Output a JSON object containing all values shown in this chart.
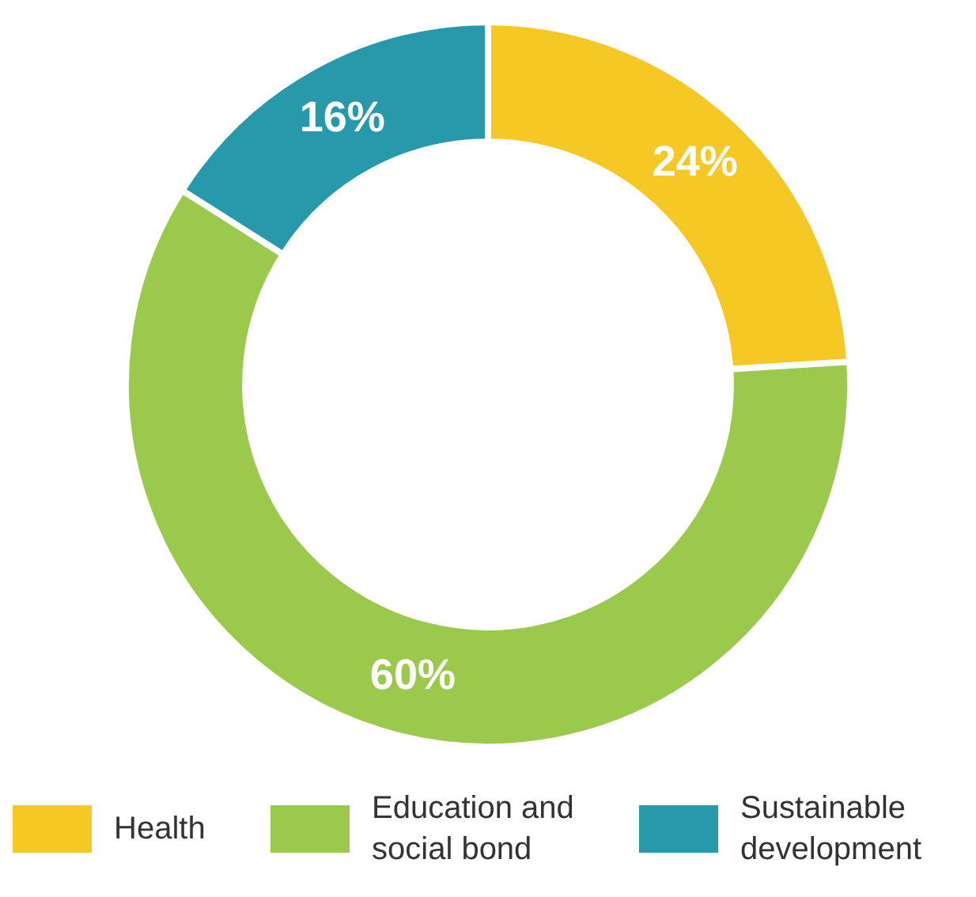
{
  "chart_data": {
    "type": "donut",
    "categories": [
      "Health",
      "Education and social bond",
      "Sustainable development"
    ],
    "values": [
      24,
      60,
      16
    ],
    "value_labels": [
      "24%",
      "60%",
      "16%"
    ],
    "colors": [
      "#f6c824",
      "#9bc94b",
      "#2699ab"
    ],
    "legend": "bottom"
  }
}
